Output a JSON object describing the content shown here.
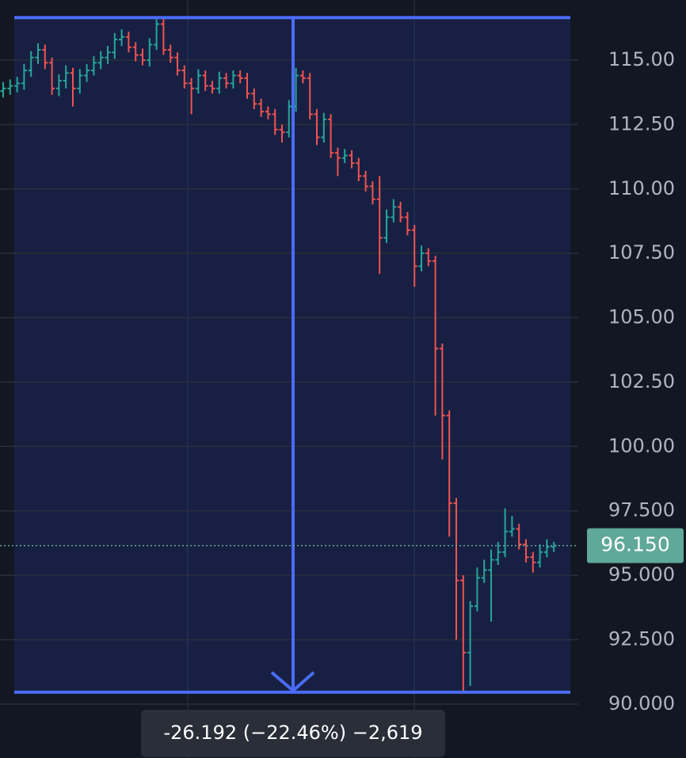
{
  "chart_data": {
    "type": "ohlc",
    "up_color": "#26a69a",
    "down_color": "#ef5350",
    "open": [
      113.8,
      113.9,
      114.0,
      114.1,
      114.6,
      115.1,
      115.4,
      114.9,
      113.9,
      114.2,
      114.5,
      113.9,
      114.4,
      114.6,
      114.9,
      115.1,
      115.3,
      115.8,
      115.9,
      115.5,
      115.2,
      115.0,
      115.6,
      116.4,
      115.4,
      115.1,
      114.6,
      114.1,
      113.9,
      114.4,
      114.0,
      113.9,
      114.3,
      114.1,
      114.4,
      114.3,
      113.7,
      113.3,
      113.0,
      112.9,
      112.3,
      112.2,
      113.2,
      114.4,
      114.3,
      112.9,
      112.0,
      112.7,
      111.4,
      111.2,
      111.3,
      111.0,
      110.5,
      110.1,
      109.6,
      108.1,
      108.9,
      109.3,
      108.9,
      108.4,
      107.0,
      107.5,
      107.2,
      103.8,
      101.2,
      97.8,
      94.8,
      92.0,
      93.8,
      94.9,
      95.2,
      95.6,
      95.9,
      96.7,
      96.8,
      96.2,
      95.7,
      95.5,
      95.9,
      96.1
    ],
    "high": [
      114.15,
      114.25,
      114.35,
      114.85,
      115.35,
      115.65,
      115.6,
      115.1,
      114.45,
      114.8,
      114.7,
      114.65,
      114.85,
      115.15,
      115.35,
      115.55,
      116.05,
      116.2,
      116.1,
      115.7,
      115.45,
      115.85,
      116.65,
      116.6,
      115.6,
      115.3,
      114.8,
      114.3,
      114.65,
      114.6,
      114.2,
      114.55,
      114.5,
      114.6,
      114.6,
      114.5,
      113.9,
      113.5,
      113.2,
      113.1,
      112.5,
      113.45,
      114.7,
      114.6,
      114.5,
      113.1,
      112.95,
      112.9,
      111.6,
      111.55,
      111.5,
      111.2,
      110.7,
      110.3,
      110.5,
      109.2,
      109.6,
      109.5,
      109.1,
      108.6,
      107.8,
      107.7,
      107.4,
      104.0,
      101.4,
      98.0,
      95.0,
      94.0,
      95.3,
      95.6,
      96.0,
      96.3,
      97.6,
      97.3,
      97.0,
      96.4,
      95.9,
      96.2,
      96.4,
      96.3
    ],
    "low": [
      113.55,
      113.65,
      113.75,
      113.85,
      114.35,
      114.85,
      114.65,
      113.65,
      113.6,
      113.9,
      113.2,
      113.7,
      114.15,
      114.4,
      114.65,
      114.85,
      115.05,
      115.55,
      115.3,
      114.95,
      114.8,
      114.75,
      115.4,
      115.2,
      114.9,
      114.4,
      113.9,
      112.9,
      113.7,
      113.8,
      113.7,
      113.7,
      113.9,
      113.9,
      114.1,
      113.5,
      113.1,
      112.8,
      112.7,
      112.1,
      111.8,
      112.0,
      113.0,
      114.1,
      112.7,
      111.7,
      111.8,
      111.2,
      110.5,
      111.0,
      110.8,
      110.3,
      109.9,
      109.4,
      106.7,
      107.9,
      108.7,
      108.7,
      108.2,
      106.2,
      106.8,
      107.0,
      101.2,
      99.5,
      96.5,
      92.5,
      90.46,
      90.7,
      93.6,
      94.7,
      93.2,
      95.4,
      95.7,
      96.5,
      96.0,
      95.5,
      95.1,
      95.3,
      95.7,
      95.9
    ],
    "close": [
      113.9,
      114.0,
      114.1,
      114.6,
      115.1,
      115.4,
      114.9,
      113.9,
      114.2,
      114.5,
      113.9,
      114.4,
      114.6,
      114.9,
      115.1,
      115.3,
      115.8,
      115.9,
      115.5,
      115.2,
      115.0,
      115.6,
      116.4,
      115.4,
      115.1,
      114.6,
      114.1,
      113.9,
      114.4,
      114.0,
      113.9,
      114.3,
      114.1,
      114.4,
      114.3,
      113.7,
      113.3,
      113.0,
      112.9,
      112.3,
      112.2,
      113.2,
      114.4,
      114.3,
      112.9,
      112.0,
      112.7,
      111.4,
      111.2,
      111.3,
      111.0,
      110.5,
      110.1,
      109.6,
      108.1,
      108.9,
      109.3,
      108.9,
      108.4,
      107.0,
      107.5,
      107.2,
      103.8,
      101.2,
      97.8,
      94.8,
      92.0,
      93.8,
      94.9,
      95.2,
      95.6,
      95.9,
      96.7,
      96.8,
      96.2,
      95.7,
      95.5,
      95.9,
      96.1,
      96.15
    ],
    "ylim": [
      87.906,
      117.334
    ],
    "yticks": [
      {
        "value": 115,
        "label": "115.00"
      },
      {
        "value": 112.5,
        "label": "112.50"
      },
      {
        "value": 110,
        "label": "110.00"
      },
      {
        "value": 107.5,
        "label": "107.50"
      },
      {
        "value": 105,
        "label": "105.00"
      },
      {
        "value": 102.5,
        "label": "102.50"
      },
      {
        "value": 100,
        "label": "100.00"
      },
      {
        "value": 97.5,
        "label": "97.500"
      },
      {
        "value": 95,
        "label": "95.000"
      },
      {
        "value": 92.5,
        "label": "92.500"
      },
      {
        "value": 90,
        "label": "90.000"
      }
    ],
    "grid": true,
    "last_price": {
      "value": 96.15,
      "label": "96.150",
      "color": "#5fa89a"
    },
    "measure": {
      "high": 116.652,
      "low": 90.46,
      "label": "-26.192 (−22.46%) −2,619",
      "color": "#4a6cf7"
    }
  }
}
